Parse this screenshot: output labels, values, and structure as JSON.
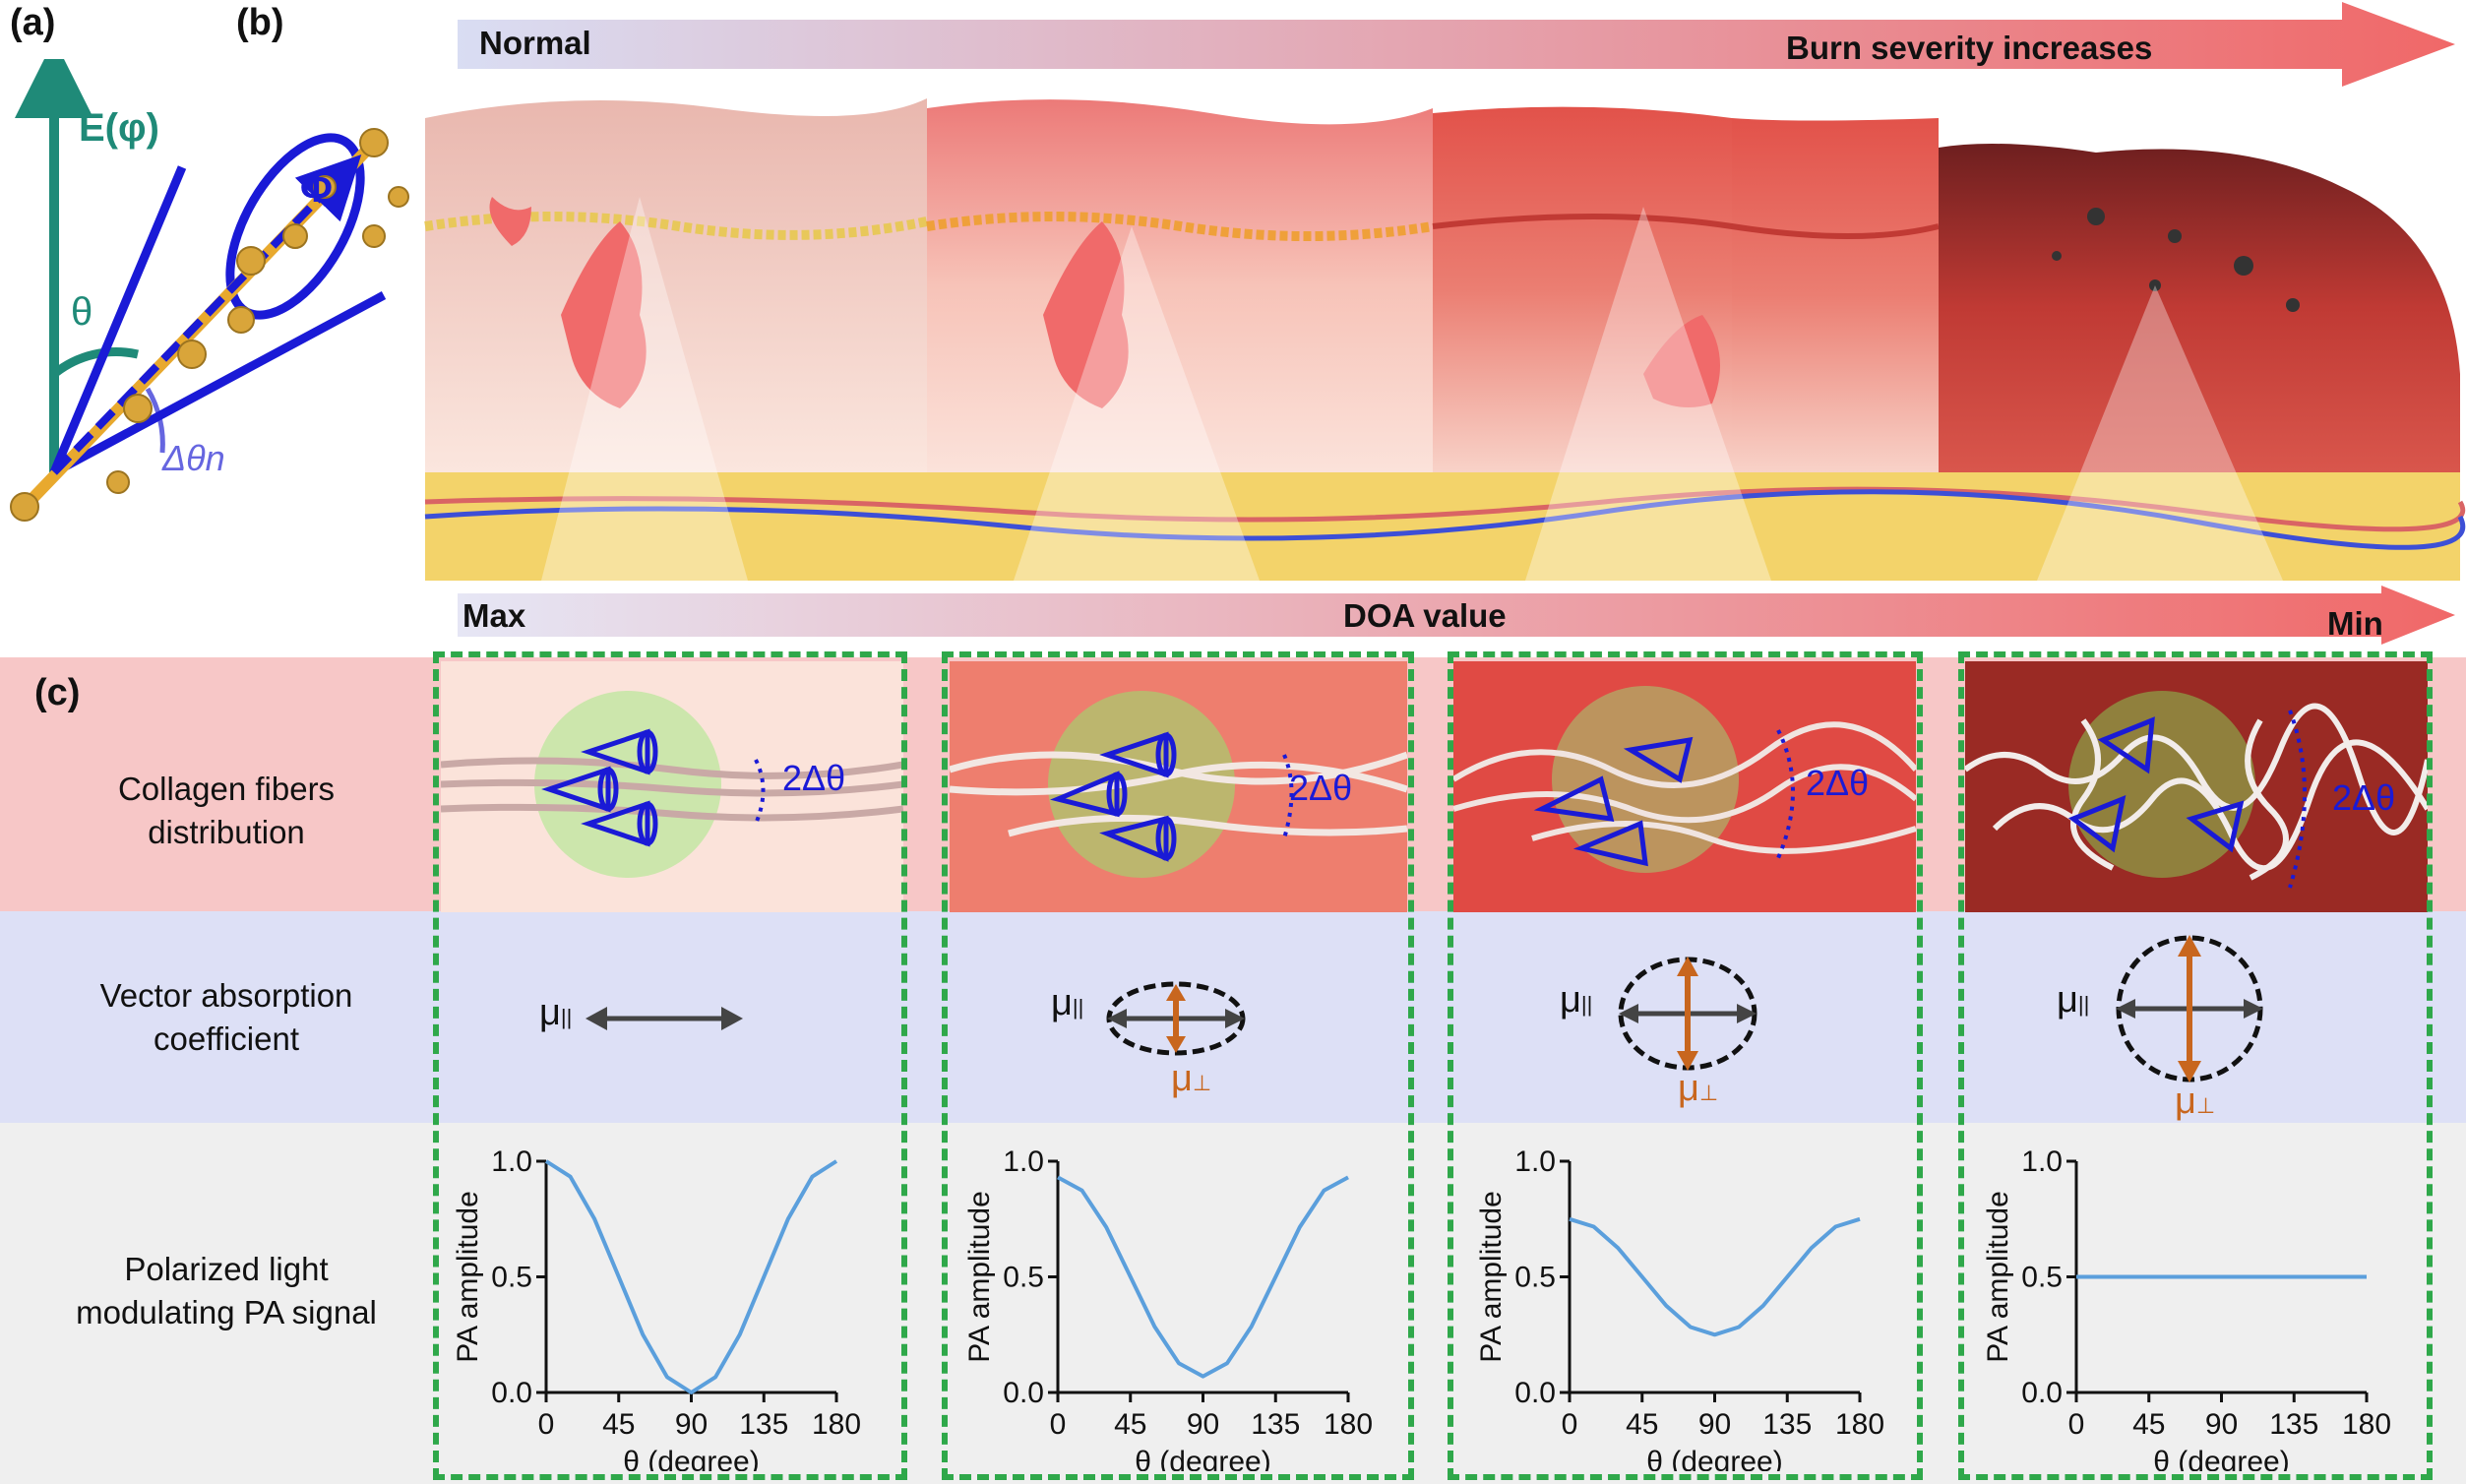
{
  "panels": {
    "a": "(a)",
    "b": "(b)",
    "c": "(c)"
  },
  "panel_a": {
    "e_label": "E(φ)",
    "phi_label": "Φ",
    "theta_label": "θ",
    "dtheta_label": "Δθn"
  },
  "panel_b": {
    "top_arrow": {
      "left": "Normal",
      "right": "Burn severity increases"
    },
    "bottom_arrow": {
      "left": "Max",
      "center": "DOA value",
      "right": "Min"
    }
  },
  "panel_c": {
    "rows": [
      {
        "label_line1": "Collagen fibers",
        "label_line2": "distribution"
      },
      {
        "label_line1": "Vector absorption",
        "label_line2": "coefficient"
      },
      {
        "label_line1": "Polarized light",
        "label_line2": "modulating PA signal"
      }
    ],
    "spread_label": "2Δθ",
    "mu_parallel": "μ",
    "mu_parallel_sub": "||",
    "mu_perp": "μ",
    "mu_perp_sub": "⊥"
  },
  "chart_data": [
    {
      "type": "line",
      "x": [
        0,
        15,
        30,
        45,
        60,
        75,
        90,
        105,
        120,
        135,
        150,
        165,
        180
      ],
      "y": [
        1.0,
        0.933,
        0.75,
        0.5,
        0.25,
        0.067,
        0.0,
        0.067,
        0.25,
        0.5,
        0.75,
        0.933,
        1.0
      ],
      "xlabel": "θ (degree)",
      "ylabel": "PA amplitude",
      "xlim": [
        0,
        180
      ],
      "ylim": [
        0,
        1
      ],
      "xticks": [
        "0",
        "45",
        "90",
        "135",
        "180"
      ],
      "yticks": [
        "0.0",
        "0.5",
        "1.0"
      ]
    },
    {
      "type": "line",
      "x": [
        0,
        15,
        30,
        45,
        60,
        75,
        90,
        105,
        120,
        135,
        150,
        165,
        180
      ],
      "y": [
        0.93,
        0.873,
        0.715,
        0.5,
        0.285,
        0.127,
        0.07,
        0.127,
        0.285,
        0.5,
        0.715,
        0.873,
        0.93
      ],
      "xlabel": "θ (degree)",
      "ylabel": "PA amplitude",
      "xlim": [
        0,
        180
      ],
      "ylim": [
        0,
        1
      ],
      "xticks": [
        "0",
        "45",
        "90",
        "135",
        "180"
      ],
      "yticks": [
        "0.0",
        "0.5",
        "1.0"
      ]
    },
    {
      "type": "line",
      "x": [
        0,
        15,
        30,
        45,
        60,
        75,
        90,
        105,
        120,
        135,
        150,
        165,
        180
      ],
      "y": [
        0.75,
        0.717,
        0.625,
        0.5,
        0.375,
        0.283,
        0.25,
        0.283,
        0.375,
        0.5,
        0.625,
        0.717,
        0.75
      ],
      "xlabel": "θ (degree)",
      "ylabel": "PA amplitude",
      "xlim": [
        0,
        180
      ],
      "ylim": [
        0,
        1
      ],
      "xticks": [
        "0",
        "45",
        "90",
        "135",
        "180"
      ],
      "yticks": [
        "0.0",
        "0.5",
        "1.0"
      ]
    },
    {
      "type": "line",
      "x": [
        0,
        15,
        30,
        45,
        60,
        75,
        90,
        105,
        120,
        135,
        150,
        165,
        180
      ],
      "y": [
        0.5,
        0.5,
        0.5,
        0.5,
        0.5,
        0.5,
        0.5,
        0.5,
        0.5,
        0.5,
        0.5,
        0.5,
        0.5
      ],
      "xlabel": "θ (degree)",
      "ylabel": "PA amplitude",
      "xlim": [
        0,
        180
      ],
      "ylim": [
        0,
        1
      ],
      "xticks": [
        "0",
        "45",
        "90",
        "135",
        "180"
      ],
      "yticks": [
        "0.0",
        "0.5",
        "1.0"
      ]
    }
  ],
  "colors": {
    "teal": "#1f8a78",
    "blue": "#1a1ad6",
    "gold": "#e8a92e",
    "green_dash": "#2fa84a",
    "orange": "#c8661e",
    "row1": "#f7c7c7",
    "row2": "#dde0f6",
    "row3": "#efefef",
    "curve": "#5b9fdc"
  }
}
